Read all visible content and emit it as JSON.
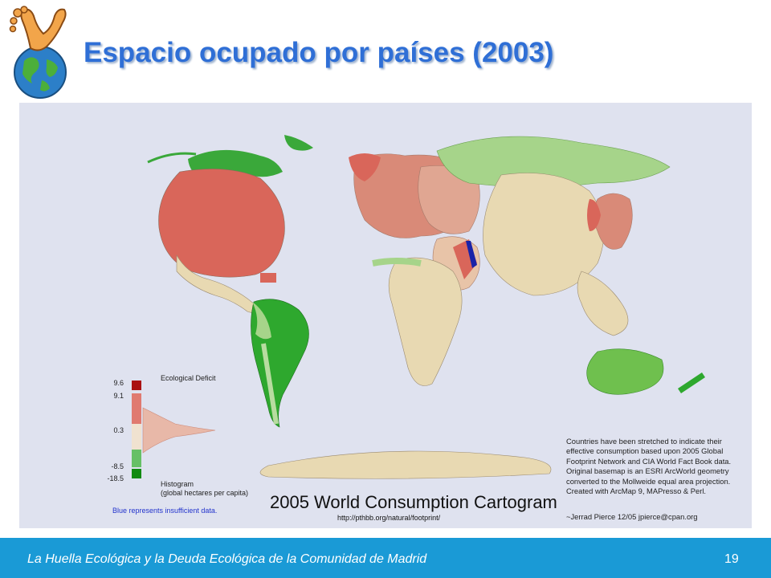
{
  "slide": {
    "title": "Espacio ocupado por países (2003)",
    "footer_text": "La Huella Ecológica y la Deuda Ecológica de la Comunidad de Madrid",
    "page_number": "19"
  },
  "logo": {
    "icon": "footprint-globe-icon"
  },
  "map": {
    "title": "2005 World Consumption Cartogram",
    "url": "http://pthbb.org/natural/footprint/",
    "credit": "Countries have been stretched to indicate their effective consumption based upon 2005 Global Footprint Network and CIA World Fact Book data. Original basemap is an ESRI ArcWorld geometry converted to the Mollweide equal area projection. Created with ArcMap 9, MAPresso & Perl.",
    "signature": "~Jerrad Pierce 12/05 jpierce@cpan.org",
    "legend": {
      "title": "Ecological Deficit",
      "ticks": [
        "9.6",
        "9.1",
        "0.3",
        "-8.5",
        "-18.5"
      ],
      "histogram_label_1": "Histogram",
      "histogram_label_2": "(global hectares per capita)",
      "blue_note": "Blue represents insufficient data."
    },
    "colors": {
      "deficit": "#d9665a",
      "neutral": "#e8d9b2",
      "reserve": "#2ea82e",
      "nodata": "#1a23a8",
      "ocean": "#dfe2ef"
    }
  }
}
